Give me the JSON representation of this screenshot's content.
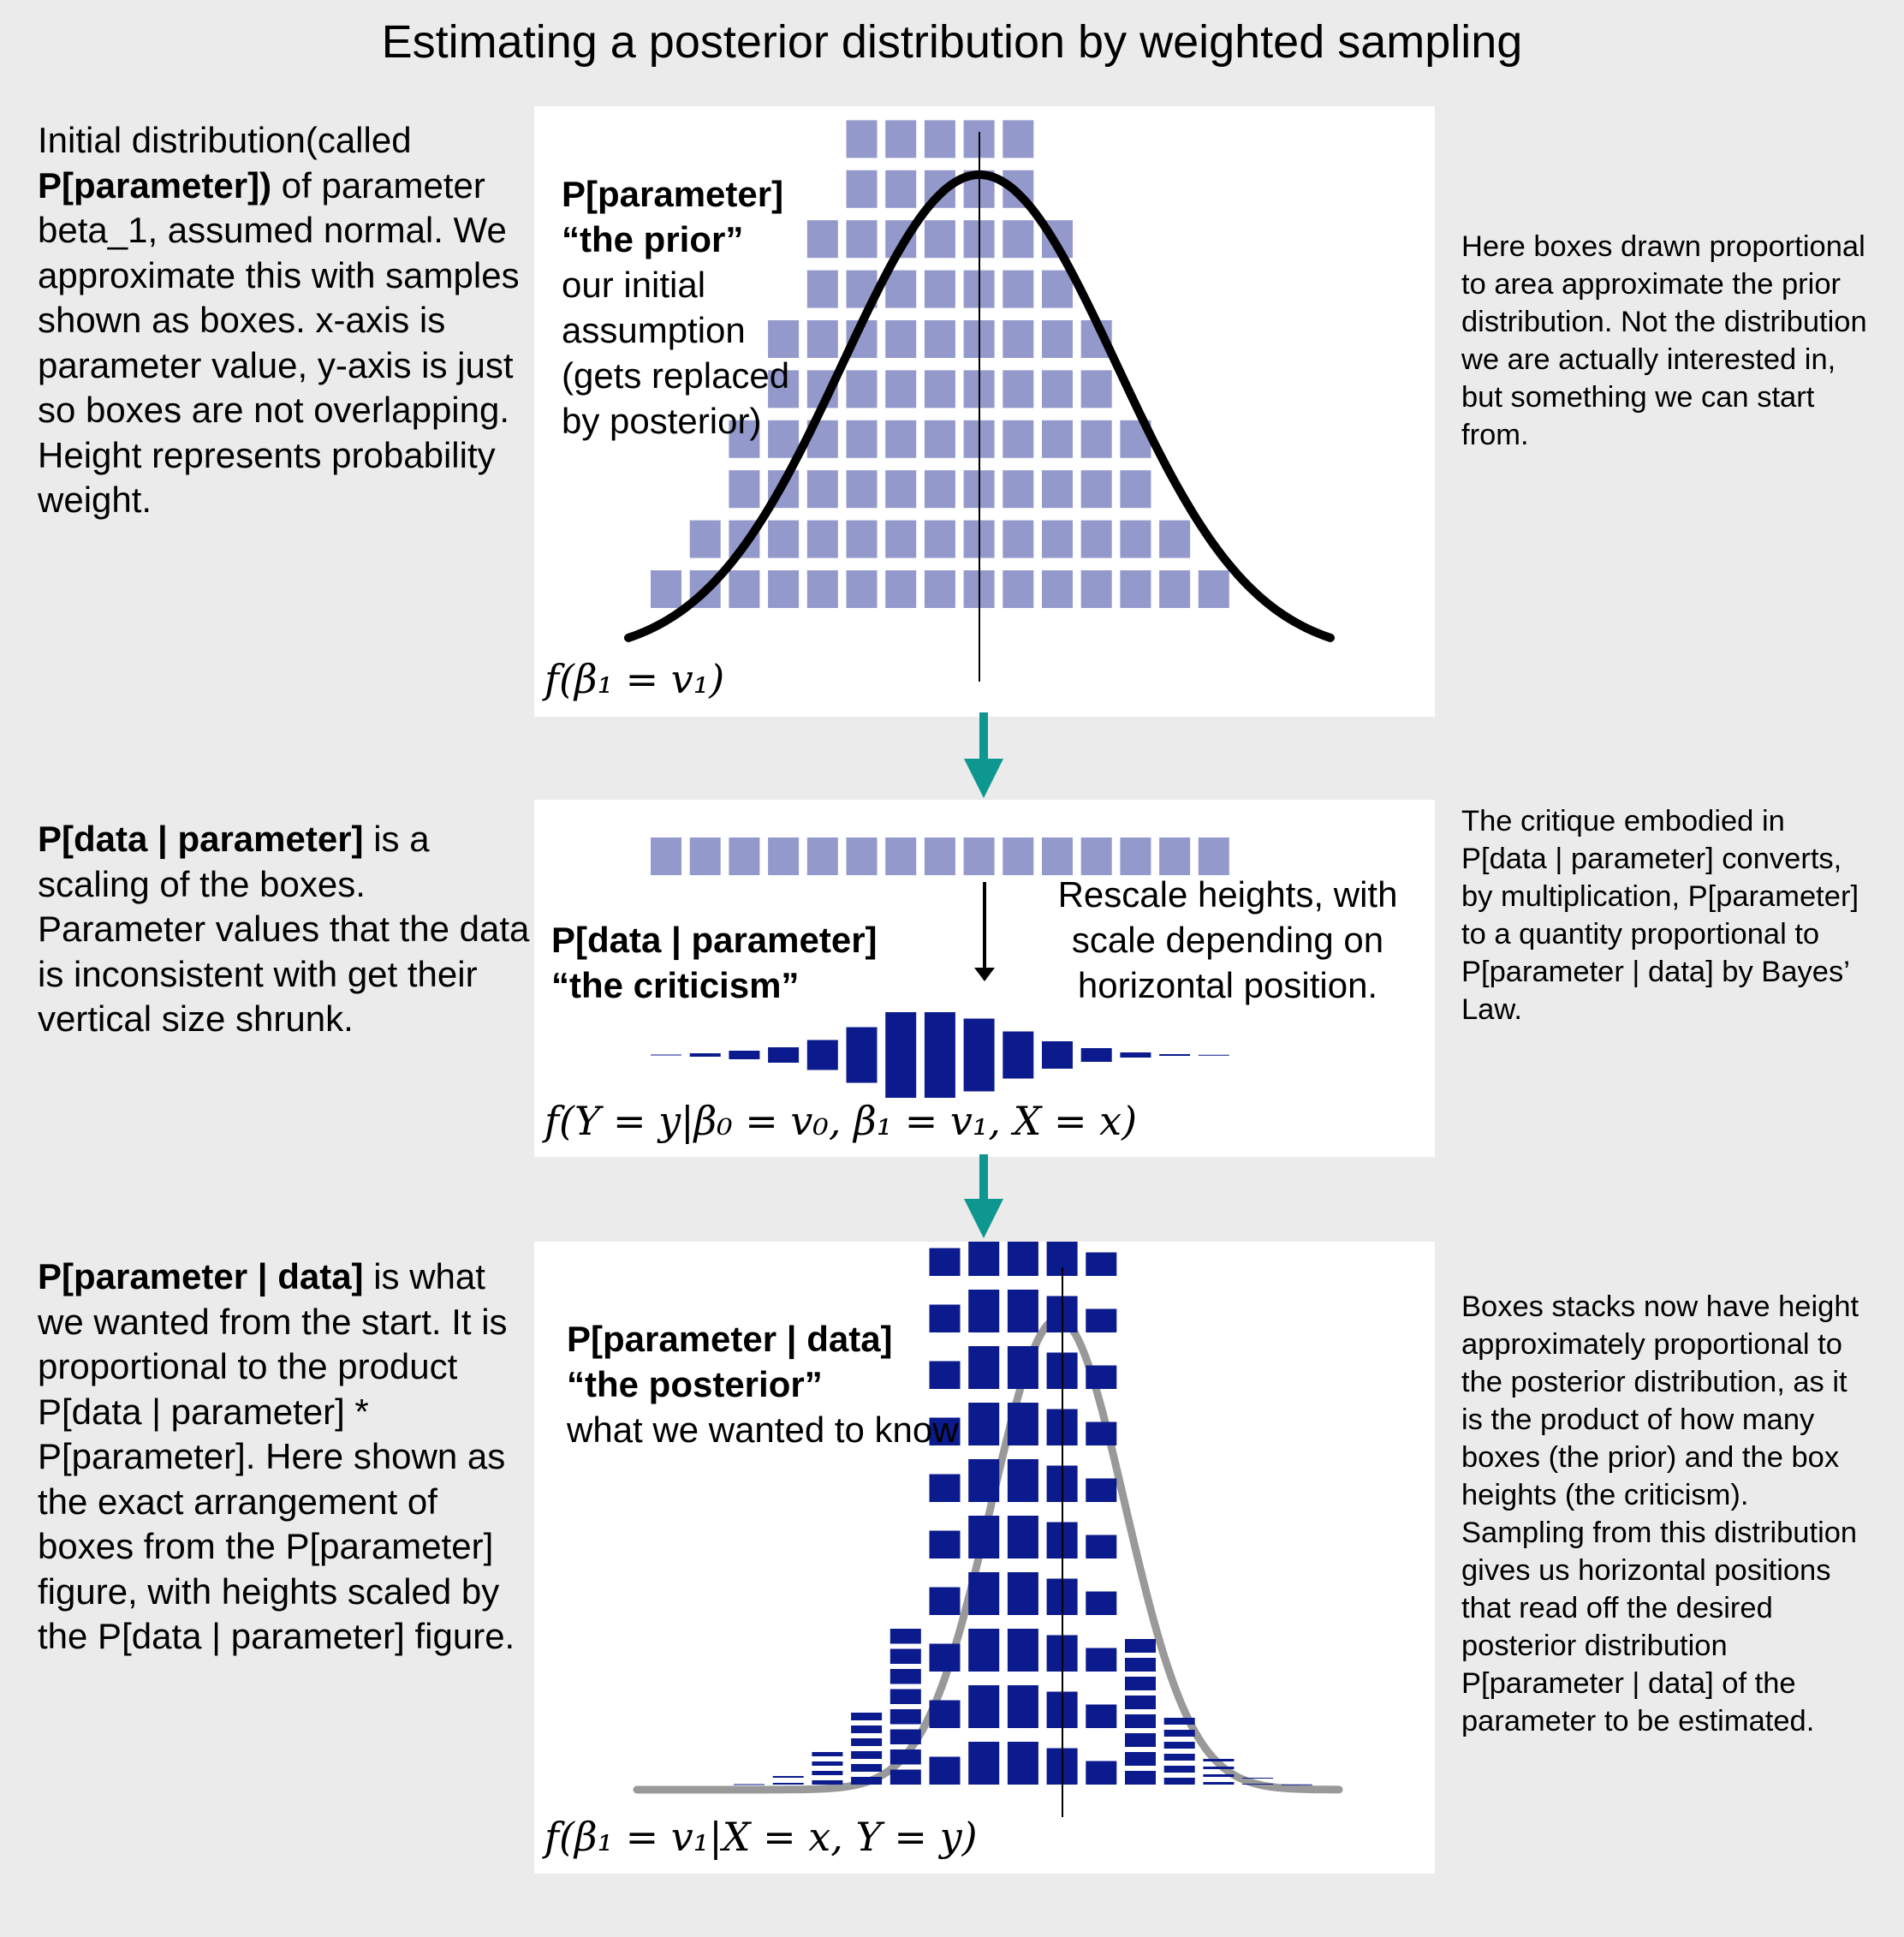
{
  "title": "Estimating a posterior distribution by weighted sampling",
  "left_text": {
    "prior": {
      "parts": [
        "Initial distribution(called",
        "P[parameter])",
        " of parameter beta_1, assumed normal. We approximate this with samples shown as boxes. x-axis is parameter value, y-axis is just so boxes are not overlapping.  Height represents probability weight."
      ]
    },
    "likelihood": {
      "bold": "P[data | parameter]",
      "rest": " is a scaling of the boxes. Parameter values that the data is inconsistent with get their vertical size shrunk."
    },
    "posterior": {
      "bold": "P[parameter | data]",
      "rest": " is what we wanted from the start. It is proportional to the product P[data | parameter] * P[parameter].  Here shown as the exact arrangement of boxes from the P[parameter] figure, with heights scaled by the P[data | parameter] figure."
    }
  },
  "right_text": {
    "prior": "Here boxes drawn proportional to area approximate the prior distribution.  Not the distribution we are actually interested in, but something we can start from.",
    "likelihood": "The critique embodied in  P[data | parameter] converts, by multiplication, P[parameter] to a quantity proportional to P[parameter | data] by Bayes’ Law.",
    "posterior": "Boxes stacks now have height approximately proportional to the posterior distribution, as it is the product of how many boxes (the prior) and the box heights (the criticism). Sampling from this distribution gives us horizontal positions that read off the desired posterior distribution P[parameter | data] of the parameter to be estimated."
  },
  "panels": {
    "prior": {
      "heading": "P[parameter]",
      "subheading": "“the prior”",
      "description": "our initial assumption (gets replaced by posterior)",
      "formula": "f(β₁ = v₁)",
      "stack_counts": [
        1,
        2,
        4,
        6,
        8,
        10,
        10,
        10,
        10,
        10,
        8,
        6,
        4,
        2,
        1
      ],
      "box_color": "#9499cc",
      "curve_color": "#000000"
    },
    "likelihood": {
      "heading": "P[data | parameter]",
      "subheading": "“the criticism”",
      "annotation": "Rescale heights, with scale depending on horizontal position.",
      "formula": "f(Y = y|β₀ = v₀, β₁ = v₁, X = x)",
      "scale_factors": [
        0.01,
        0.04,
        0.1,
        0.18,
        0.35,
        0.65,
        1.0,
        1.0,
        0.85,
        0.55,
        0.32,
        0.16,
        0.06,
        0.02,
        0.005
      ],
      "box_color": "#0b1a8c"
    },
    "posterior": {
      "heading": "P[parameter | data]",
      "subheading": "“the posterior”",
      "description": "what we wanted to know",
      "formula": "f(β₁ = v₁|X = x, Y = y)",
      "box_color": "#0b1a8c",
      "curve_color": "#999999"
    }
  },
  "arrow_color": "#0e9690"
}
